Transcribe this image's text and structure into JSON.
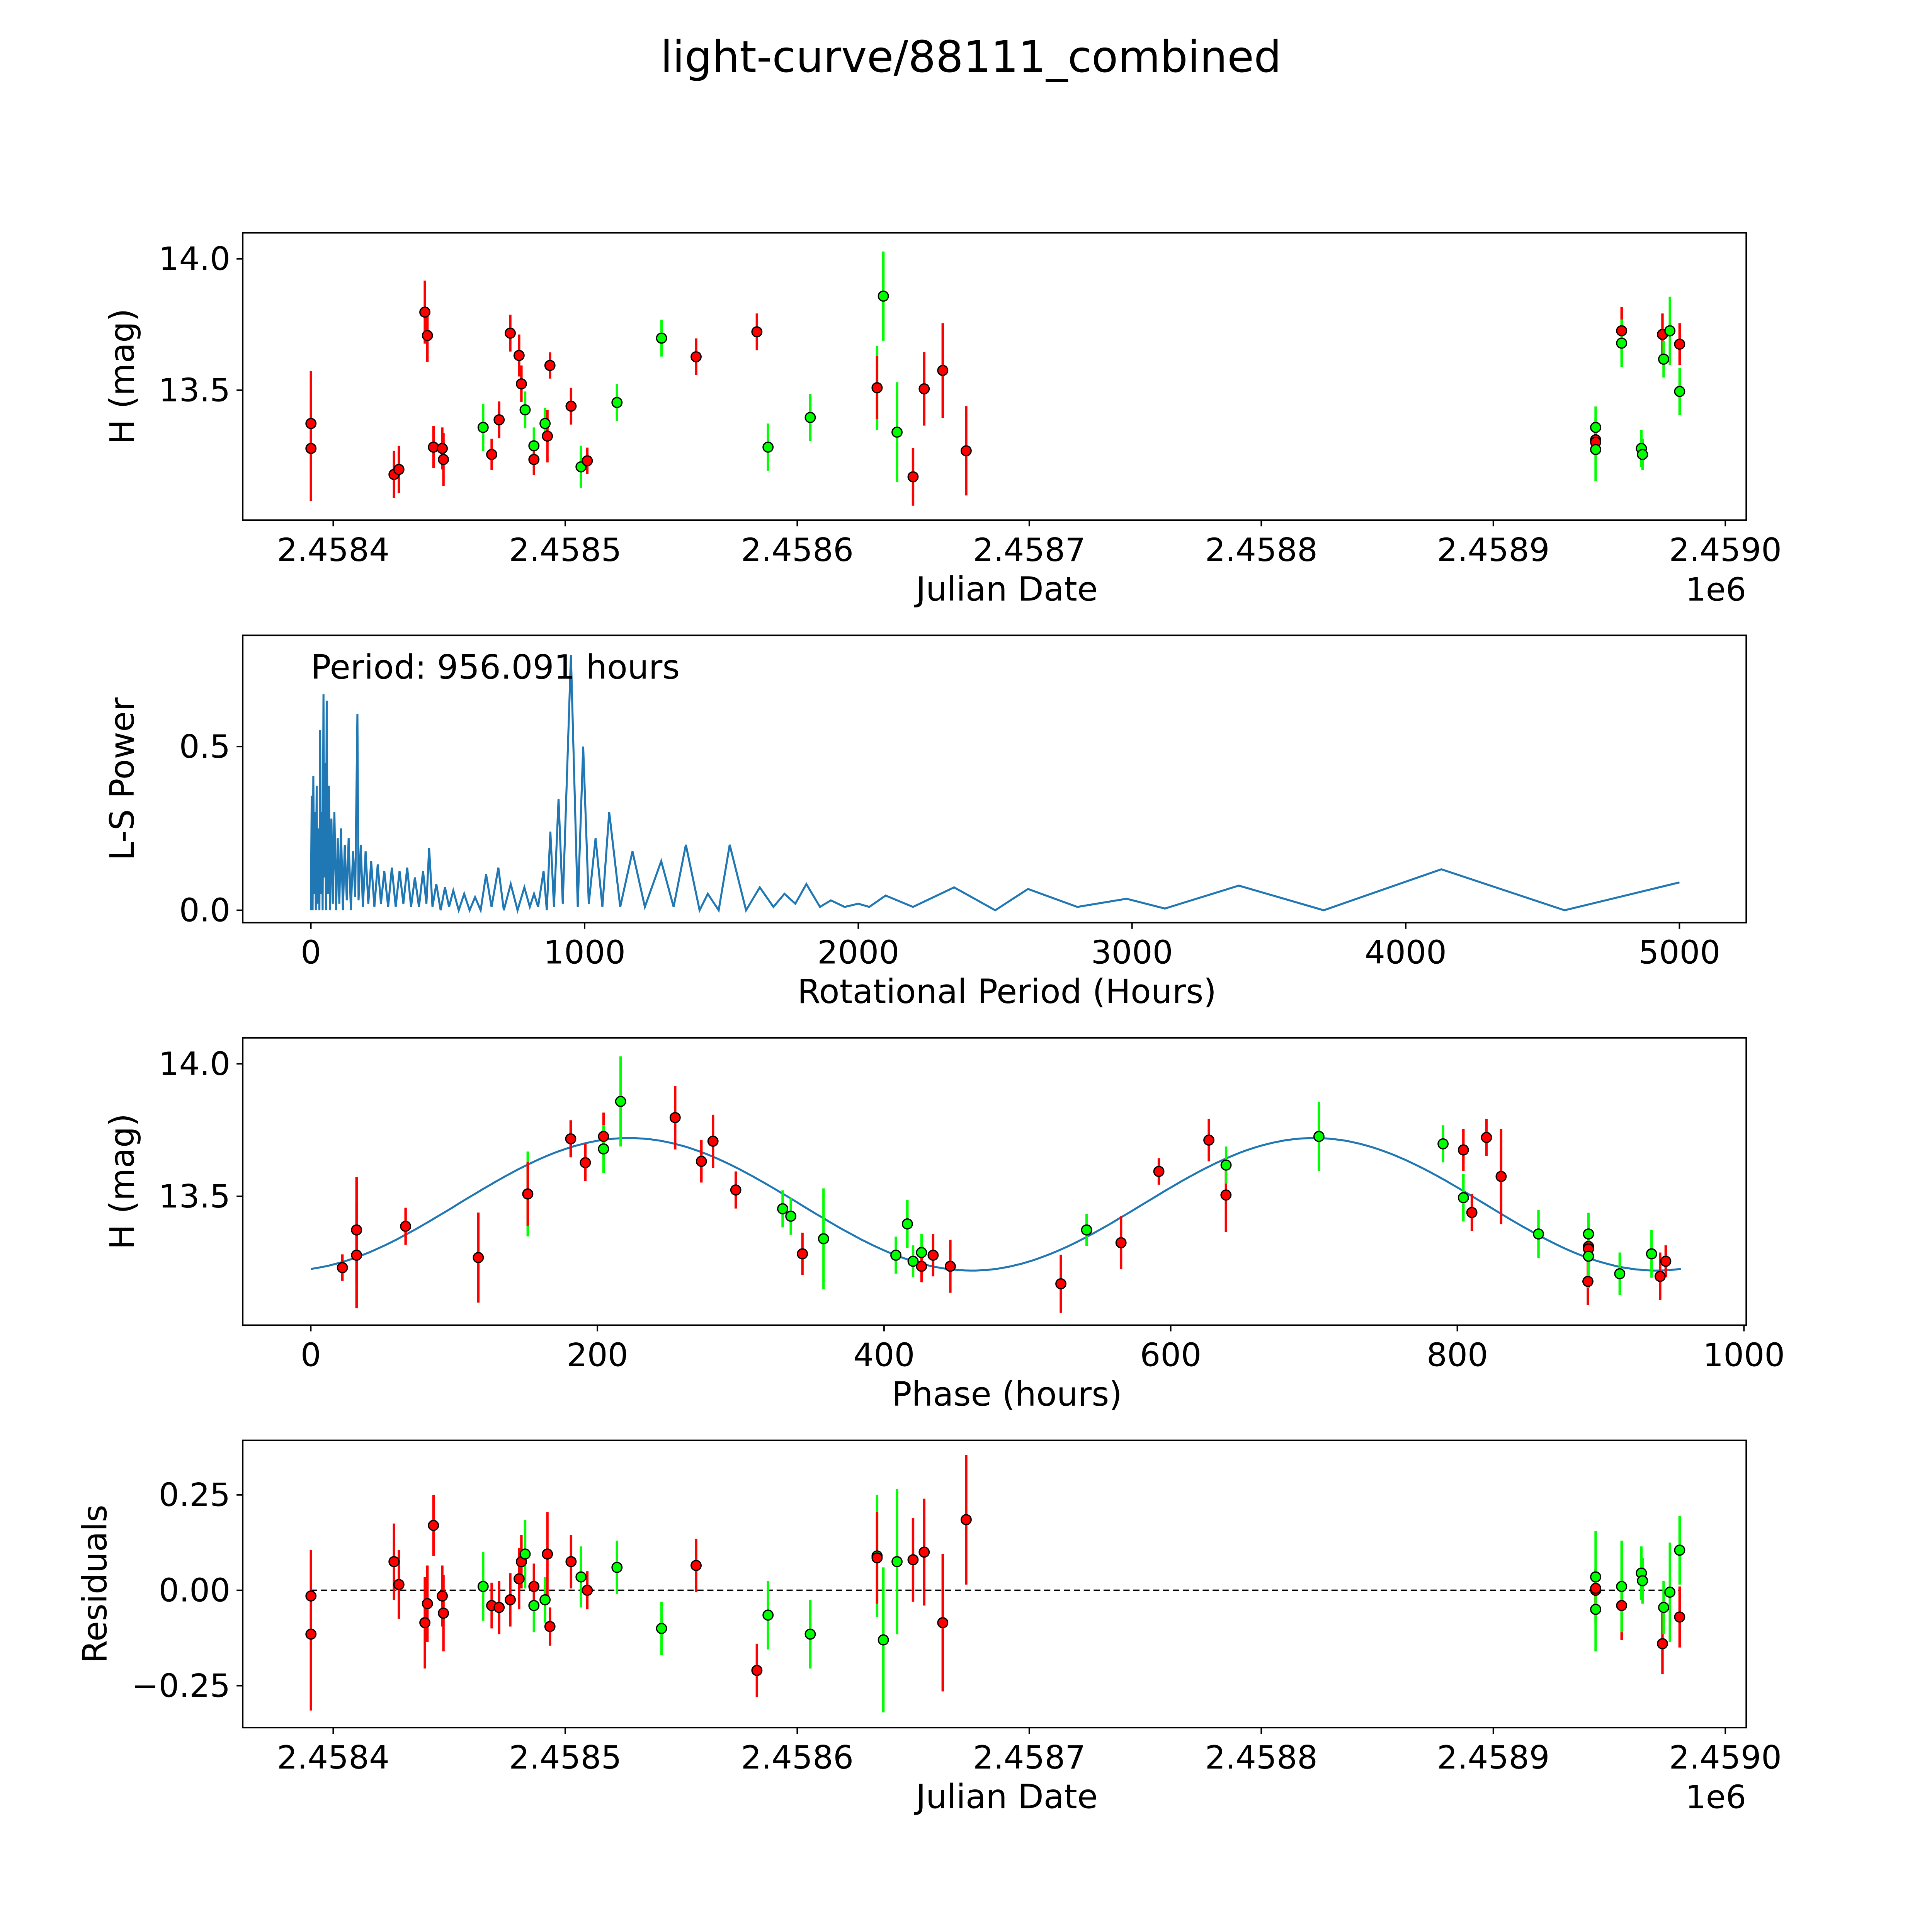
{
  "title": "light-curve/88111_combined",
  "colors": {
    "red": "#ff0000",
    "green": "#00ff00",
    "fit": "#1f77b4",
    "line": "#1f77b4"
  },
  "chart_data": [
    {
      "type": "scatter",
      "id": "lightcurve",
      "xlabel": "Julian Date",
      "ylabel": "H (mag)",
      "offset_text": "1e6",
      "xlim": [
        2458361,
        2459009
      ],
      "ylim": [
        13.005,
        14.099
      ],
      "xticks": [
        2458400,
        2458500,
        2458600,
        2458700,
        2458800,
        2458900,
        2459000
      ],
      "xtick_labels": [
        "2.4584",
        "2.4585",
        "2.4586",
        "2.4587",
        "2.4588",
        "2.4589",
        "2.4590"
      ],
      "yticks": [
        13.5,
        14.0
      ],
      "ytick_labels": [
        "13.5",
        "14.0"
      ],
      "points": [
        [
          2458390.4,
          13.373,
          0.2,
          "red"
        ],
        [
          2458390.4,
          13.278,
          0.2,
          "red"
        ],
        [
          2458426.2,
          13.179,
          0.09,
          "red"
        ],
        [
          2458428.3,
          13.198,
          0.09,
          "red"
        ],
        [
          2458439.5,
          13.797,
          0.12,
          "red"
        ],
        [
          2458440.6,
          13.708,
          0.1,
          "red"
        ],
        [
          2458443.2,
          13.283,
          0.08,
          "red"
        ],
        [
          2458447.0,
          13.278,
          0.08,
          "red"
        ],
        [
          2458447.5,
          13.236,
          0.1,
          "red"
        ],
        [
          2458464.6,
          13.358,
          0.09,
          "green"
        ],
        [
          2458468.3,
          13.255,
          0.06,
          "red"
        ],
        [
          2458471.5,
          13.387,
          0.07,
          "red"
        ],
        [
          2458476.3,
          13.717,
          0.07,
          "red"
        ],
        [
          2458480.1,
          13.632,
          0.08,
          "red"
        ],
        [
          2458481.1,
          13.524,
          0.07,
          "red"
        ],
        [
          2458482.7,
          13.425,
          0.07,
          "green"
        ],
        [
          2458486.5,
          13.288,
          0.07,
          "green"
        ],
        [
          2458486.5,
          13.236,
          0.06,
          "red"
        ],
        [
          2458491.3,
          13.373,
          0.06,
          "green"
        ],
        [
          2458492.3,
          13.325,
          0.1,
          "red"
        ],
        [
          2458493.4,
          13.594,
          0.05,
          "red"
        ],
        [
          2458502.5,
          13.439,
          0.07,
          "red"
        ],
        [
          2458506.8,
          13.208,
          0.08,
          "green"
        ],
        [
          2458509.5,
          13.231,
          0.05,
          "red"
        ],
        [
          2458522.3,
          13.453,
          0.07,
          "green"
        ],
        [
          2458541.5,
          13.698,
          0.07,
          "green"
        ],
        [
          2458556.4,
          13.627,
          0.07,
          "red"
        ],
        [
          2458582.6,
          13.722,
          0.07,
          "red"
        ],
        [
          2458587.4,
          13.283,
          0.09,
          "green"
        ],
        [
          2458605.6,
          13.396,
          0.09,
          "green"
        ],
        [
          2458634.4,
          13.509,
          0.16,
          "green"
        ],
        [
          2458634.4,
          13.509,
          0.12,
          "red"
        ],
        [
          2458637.1,
          13.858,
          0.17,
          "green"
        ],
        [
          2458643.0,
          13.34,
          0.19,
          "green"
        ],
        [
          2458649.9,
          13.17,
          0.11,
          "red"
        ],
        [
          2458654.7,
          13.505,
          0.14,
          "red"
        ],
        [
          2458662.7,
          13.575,
          0.18,
          "red"
        ],
        [
          2458672.8,
          13.269,
          0.17,
          "red"
        ],
        [
          2458944.1,
          13.358,
          0.08,
          "green"
        ],
        [
          2458944.1,
          13.311,
          0.05,
          "red"
        ],
        [
          2458944.1,
          13.302,
          0.05,
          "red"
        ],
        [
          2458944.1,
          13.274,
          0.12,
          "green"
        ],
        [
          2458955.3,
          13.726,
          0.09,
          "red"
        ],
        [
          2458955.3,
          13.679,
          0.09,
          "green"
        ],
        [
          2458963.8,
          13.278,
          0.07,
          "green"
        ],
        [
          2458964.3,
          13.255,
          0.06,
          "green"
        ],
        [
          2458972.9,
          13.712,
          0.08,
          "red"
        ],
        [
          2458973.4,
          13.618,
          0.07,
          "green"
        ],
        [
          2458976.1,
          13.726,
          0.13,
          "green"
        ],
        [
          2458980.3,
          13.675,
          0.08,
          "red"
        ],
        [
          2458980.3,
          13.495,
          0.09,
          "green"
        ]
      ]
    },
    {
      "type": "line",
      "id": "periodogram",
      "xlabel": "Rotational Period (Hours)",
      "ylabel": "L-S Power",
      "annotation": "Period: 956.091 hours",
      "xlim": [
        -249,
        5244
      ],
      "ylim": [
        -0.038,
        0.84
      ],
      "xticks": [
        0,
        1000,
        2000,
        3000,
        4000,
        5000
      ],
      "xtick_labels": [
        "0",
        "1000",
        "2000",
        "3000",
        "4000",
        "5000"
      ],
      "yticks": [
        0.0,
        0.5
      ],
      "ytick_labels": [
        "0.0",
        "0.5"
      ],
      "points": [
        [
          0,
          0
        ],
        [
          3,
          0.35
        ],
        [
          6,
          0
        ],
        [
          9,
          0.41
        ],
        [
          12,
          0.05
        ],
        [
          15,
          0.3
        ],
        [
          18,
          0
        ],
        [
          21,
          0.38
        ],
        [
          24,
          0.02
        ],
        [
          28,
          0.25
        ],
        [
          31,
          0
        ],
        [
          34,
          0.55
        ],
        [
          37,
          0.05
        ],
        [
          40,
          0.3
        ],
        [
          43,
          0
        ],
        [
          46,
          0.66
        ],
        [
          49,
          0.1
        ],
        [
          52,
          0.45
        ],
        [
          55,
          0
        ],
        [
          58,
          0.64
        ],
        [
          62,
          0.05
        ],
        [
          66,
          0.38
        ],
        [
          70,
          0
        ],
        [
          75,
          0.28
        ],
        [
          80,
          0.02
        ],
        [
          86,
          0.3
        ],
        [
          92,
          0
        ],
        [
          98,
          0.22
        ],
        [
          104,
          0.02
        ],
        [
          110,
          0.25
        ],
        [
          117,
          0
        ],
        [
          124,
          0.2
        ],
        [
          131,
          0.03
        ],
        [
          138,
          0.22
        ],
        [
          146,
          0
        ],
        [
          154,
          0.18
        ],
        [
          162,
          0.04
        ],
        [
          170,
          0.6
        ],
        [
          174,
          0.03
        ],
        [
          182,
          0.2
        ],
        [
          190,
          0.01
        ],
        [
          200,
          0.18
        ],
        [
          210,
          0.02
        ],
        [
          220,
          0.15
        ],
        [
          232,
          0.01
        ],
        [
          244,
          0.14
        ],
        [
          256,
          0.02
        ],
        [
          268,
          0.12
        ],
        [
          282,
          0.01
        ],
        [
          296,
          0.13
        ],
        [
          310,
          0.01
        ],
        [
          324,
          0.12
        ],
        [
          338,
          0.02
        ],
        [
          352,
          0.13
        ],
        [
          366,
          0.01
        ],
        [
          380,
          0.1
        ],
        [
          395,
          0.01
        ],
        [
          410,
          0.12
        ],
        [
          422,
          0.02
        ],
        [
          432,
          0.19
        ],
        [
          444,
          0.01
        ],
        [
          458,
          0.08
        ],
        [
          474,
          0
        ],
        [
          490,
          0.07
        ],
        [
          505,
          0.01
        ],
        [
          520,
          0.06
        ],
        [
          540,
          0
        ],
        [
          560,
          0.05
        ],
        [
          580,
          0
        ],
        [
          600,
          0.04
        ],
        [
          620,
          0
        ],
        [
          640,
          0.11
        ],
        [
          660,
          0.01
        ],
        [
          685,
          0.13
        ],
        [
          705,
          0
        ],
        [
          730,
          0.08
        ],
        [
          755,
          0
        ],
        [
          780,
          0.07
        ],
        [
          800,
          0.01
        ],
        [
          815,
          0.05
        ],
        [
          830,
          0.01
        ],
        [
          850,
          0.12
        ],
        [
          862,
          0
        ],
        [
          875,
          0.24
        ],
        [
          888,
          0.01
        ],
        [
          905,
          0.34
        ],
        [
          920,
          0.02
        ],
        [
          950,
          0.78
        ],
        [
          975,
          0.01
        ],
        [
          995,
          0.5
        ],
        [
          1015,
          0.02
        ],
        [
          1040,
          0.22
        ],
        [
          1065,
          0.01
        ],
        [
          1090,
          0.3
        ],
        [
          1130,
          0.01
        ],
        [
          1175,
          0.18
        ],
        [
          1220,
          0.01
        ],
        [
          1280,
          0.15
        ],
        [
          1325,
          0.01
        ],
        [
          1370,
          0.2
        ],
        [
          1420,
          0
        ],
        [
          1450,
          0.05
        ],
        [
          1490,
          0
        ],
        [
          1530,
          0.2
        ],
        [
          1590,
          0
        ],
        [
          1640,
          0.07
        ],
        [
          1690,
          0.01
        ],
        [
          1730,
          0.05
        ],
        [
          1770,
          0.02
        ],
        [
          1810,
          0.08
        ],
        [
          1860,
          0.01
        ],
        [
          1900,
          0.03
        ],
        [
          1950,
          0.01
        ],
        [
          2000,
          0.02
        ],
        [
          2040,
          0.01
        ],
        [
          2100,
          0.045
        ],
        [
          2200,
          0.01
        ],
        [
          2350,
          0.07
        ],
        [
          2500,
          0
        ],
        [
          2620,
          0.065
        ],
        [
          2800,
          0.01
        ],
        [
          2980,
          0.035
        ],
        [
          3120,
          0.005
        ],
        [
          3390,
          0.075
        ],
        [
          3700,
          0
        ],
        [
          4130,
          0.125
        ],
        [
          4580,
          0
        ],
        [
          5000,
          0.085
        ]
      ]
    },
    {
      "type": "scatter",
      "id": "phased",
      "xlabel": "Phase (hours)",
      "ylabel": "H (mag)",
      "period_hours": 956.091,
      "epoch_jd": 2458389.07,
      "fit": {
        "mean": 13.47,
        "amplitude": 0.25,
        "peak_phase": 222,
        "fit_period_hours": 478.05
      },
      "xlim": [
        -47.5,
        1001.6
      ],
      "ylim": [
        13.014,
        14.098
      ],
      "xticks": [
        0,
        200,
        400,
        600,
        800,
        1000
      ],
      "xtick_labels": [
        "0",
        "200",
        "400",
        "600",
        "800",
        "1000"
      ],
      "yticks": [
        13.5,
        14.0
      ],
      "ytick_labels": [
        "13.5",
        "14.0"
      ]
    },
    {
      "type": "scatter",
      "id": "residuals",
      "xlabel": "Julian Date",
      "ylabel": "Residuals",
      "offset_text": "1e6",
      "xlim": [
        2458361,
        2459009
      ],
      "ylim": [
        -0.36,
        0.393
      ],
      "xticks": [
        2458400,
        2458500,
        2458600,
        2458700,
        2458800,
        2458900,
        2459000
      ],
      "xtick_labels": [
        "2.4584",
        "2.4585",
        "2.4586",
        "2.4587",
        "2.4588",
        "2.4589",
        "2.4590"
      ],
      "yticks": [
        -0.25,
        0.0,
        0.25
      ],
      "ytick_labels": [
        "−0.25",
        "0.00",
        "0.25"
      ],
      "points": [
        [
          2458390.4,
          -0.015,
          0.12,
          "red"
        ],
        [
          2458390.4,
          -0.115,
          0.2,
          "red"
        ],
        [
          2458426.2,
          0.075,
          0.1,
          "red"
        ],
        [
          2458428.3,
          0.015,
          0.09,
          "red"
        ],
        [
          2458439.5,
          -0.085,
          0.12,
          "red"
        ],
        [
          2458440.6,
          -0.035,
          0.1,
          "red"
        ],
        [
          2458443.2,
          0.17,
          0.08,
          "red"
        ],
        [
          2458447.0,
          -0.015,
          0.08,
          "red"
        ],
        [
          2458447.5,
          -0.06,
          0.1,
          "red"
        ],
        [
          2458464.6,
          0.01,
          0.09,
          "green"
        ],
        [
          2458468.3,
          -0.04,
          0.06,
          "red"
        ],
        [
          2458471.5,
          -0.045,
          0.07,
          "red"
        ],
        [
          2458476.3,
          -0.025,
          0.07,
          "red"
        ],
        [
          2458480.1,
          0.03,
          0.08,
          "red"
        ],
        [
          2458481.1,
          0.075,
          0.07,
          "red"
        ],
        [
          2458482.7,
          0.095,
          0.09,
          "green"
        ],
        [
          2458486.5,
          -0.04,
          0.07,
          "green"
        ],
        [
          2458486.5,
          0.01,
          0.06,
          "red"
        ],
        [
          2458491.3,
          -0.025,
          0.06,
          "green"
        ],
        [
          2458492.3,
          0.095,
          0.11,
          "red"
        ],
        [
          2458493.4,
          -0.095,
          0.05,
          "red"
        ],
        [
          2458502.5,
          0.075,
          0.07,
          "red"
        ],
        [
          2458506.8,
          0.035,
          0.08,
          "green"
        ],
        [
          2458509.5,
          0.0,
          0.05,
          "red"
        ],
        [
          2458522.3,
          0.06,
          0.07,
          "green"
        ],
        [
          2458541.5,
          -0.1,
          0.07,
          "green"
        ],
        [
          2458556.4,
          0.065,
          0.07,
          "red"
        ],
        [
          2458582.6,
          -0.21,
          0.07,
          "red"
        ],
        [
          2458587.4,
          -0.065,
          0.09,
          "green"
        ],
        [
          2458605.6,
          -0.115,
          0.09,
          "green"
        ],
        [
          2458634.4,
          0.09,
          0.16,
          "green"
        ],
        [
          2458634.4,
          0.085,
          0.12,
          "red"
        ],
        [
          2458637.1,
          -0.13,
          0.19,
          "green"
        ],
        [
          2458643.0,
          0.075,
          0.19,
          "green"
        ],
        [
          2458649.9,
          0.08,
          0.11,
          "red"
        ],
        [
          2458654.7,
          0.1,
          0.14,
          "red"
        ],
        [
          2458662.7,
          -0.085,
          0.18,
          "red"
        ],
        [
          2458672.8,
          0.185,
          0.17,
          "red"
        ],
        [
          2458944.1,
          0.035,
          0.12,
          "green"
        ],
        [
          2458944.1,
          0.0,
          0.05,
          "red"
        ],
        [
          2458944.1,
          0.005,
          0.05,
          "red"
        ],
        [
          2458944.1,
          -0.05,
          0.11,
          "green"
        ],
        [
          2458955.3,
          -0.04,
          0.09,
          "red"
        ],
        [
          2458955.3,
          0.01,
          0.12,
          "green"
        ],
        [
          2458963.8,
          0.045,
          0.07,
          "green"
        ],
        [
          2458964.3,
          0.025,
          0.06,
          "green"
        ],
        [
          2458972.9,
          -0.14,
          0.08,
          "red"
        ],
        [
          2458973.4,
          -0.045,
          0.07,
          "green"
        ],
        [
          2458976.1,
          -0.005,
          0.13,
          "green"
        ],
        [
          2458980.3,
          -0.07,
          0.08,
          "red"
        ],
        [
          2458980.3,
          0.105,
          0.09,
          "green"
        ]
      ]
    }
  ]
}
